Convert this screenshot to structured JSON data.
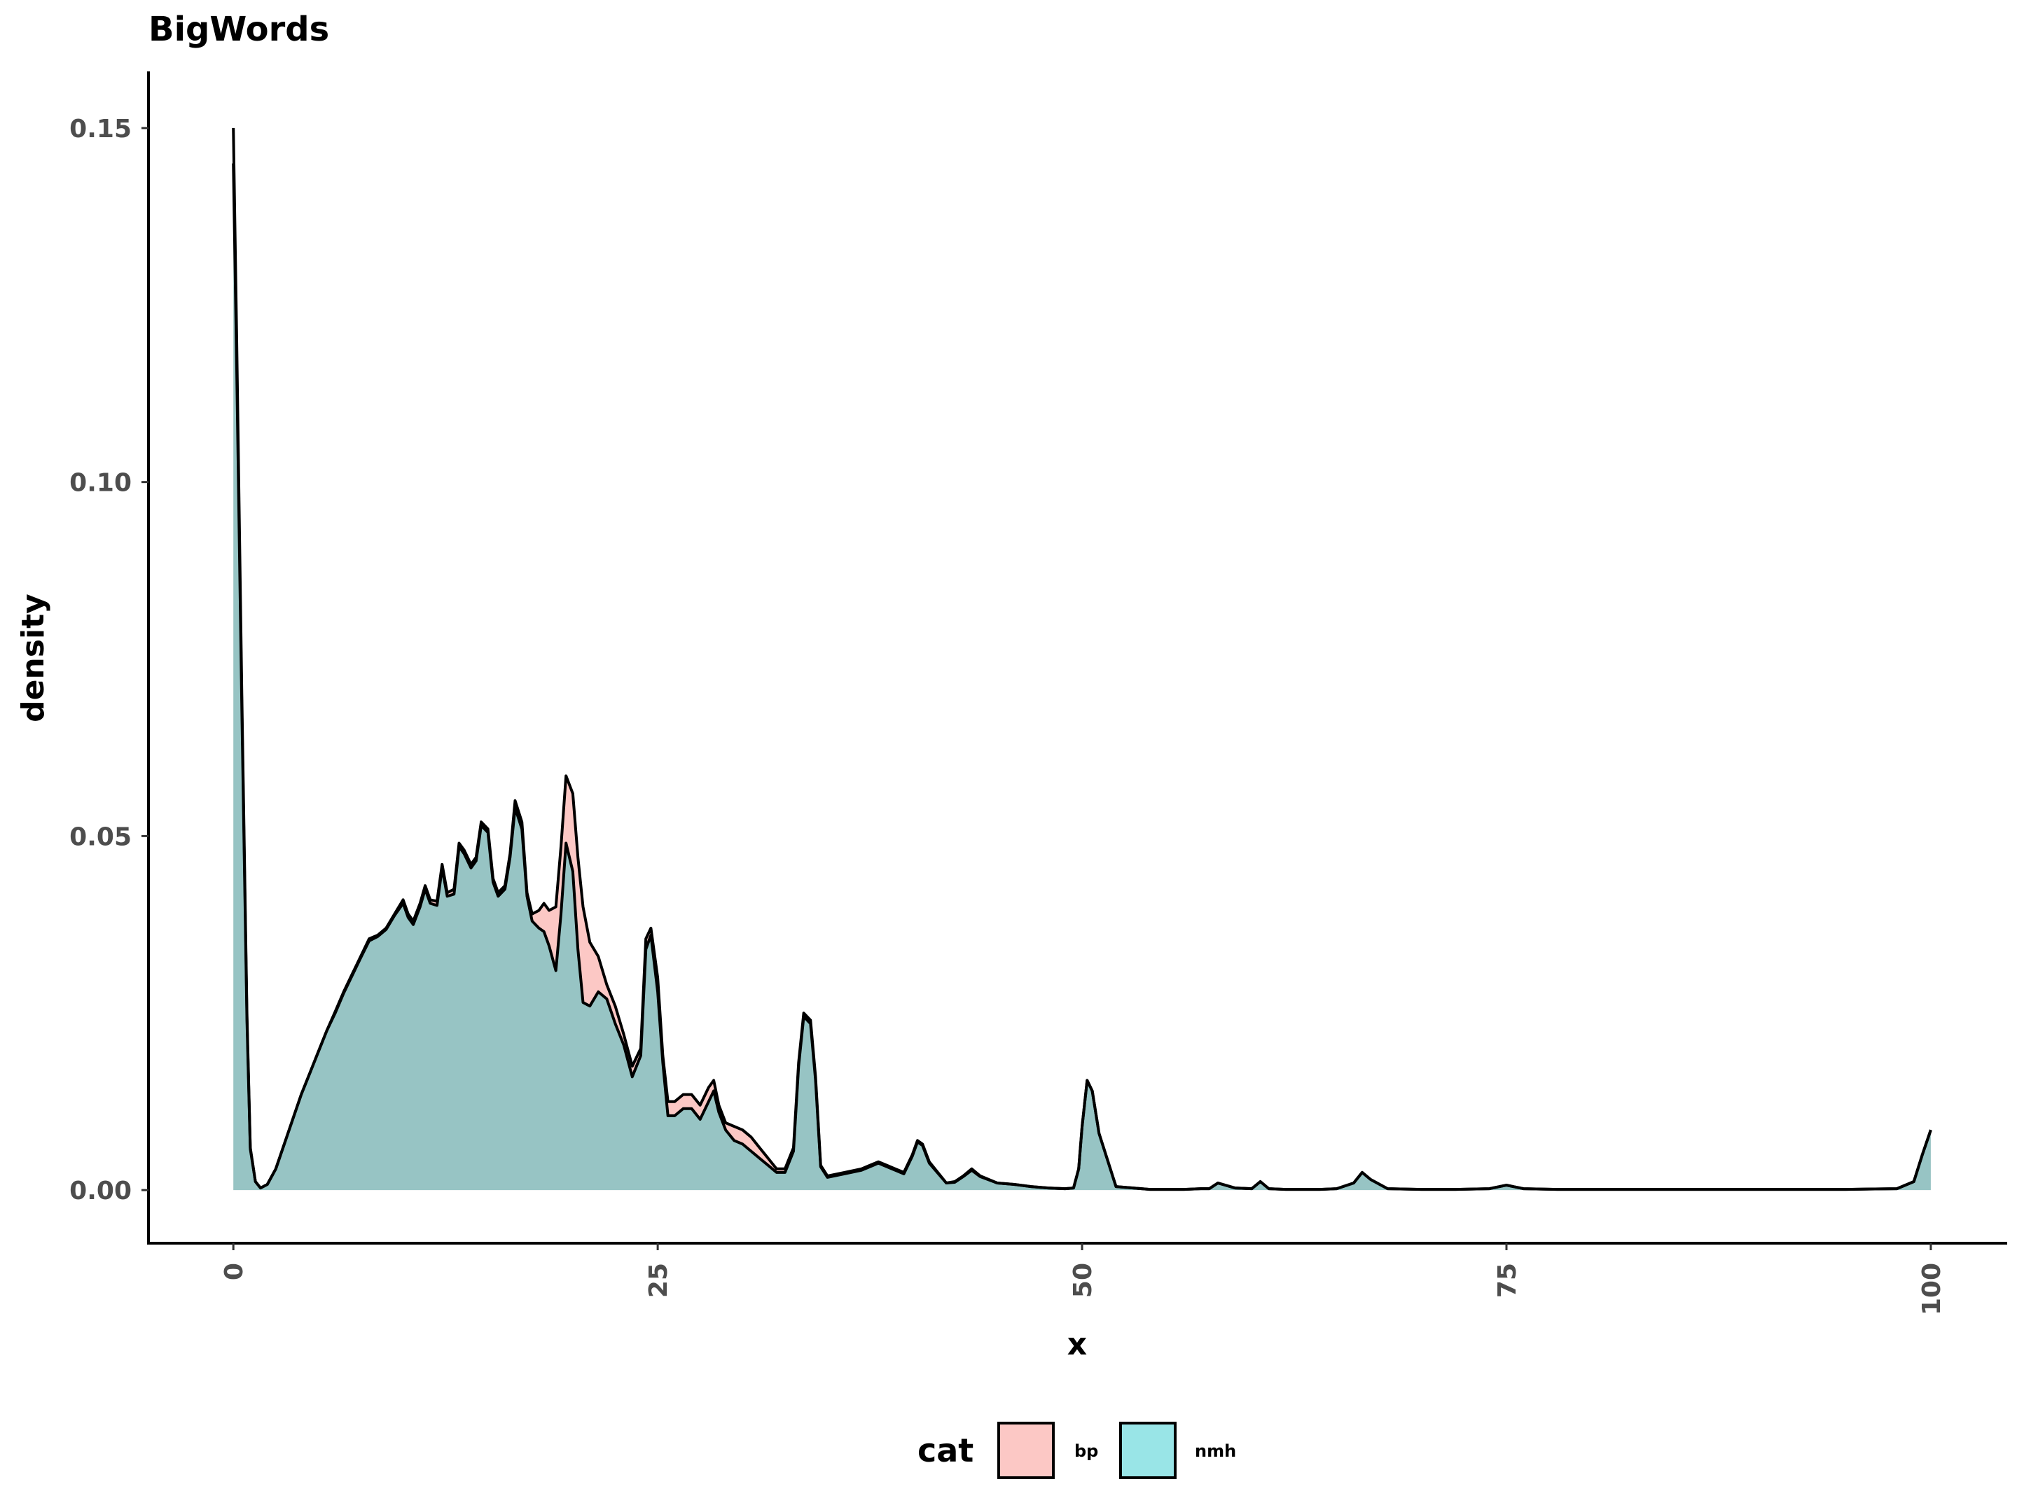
{
  "chart_data": {
    "type": "area",
    "title": "BigWords",
    "xlabel": "x",
    "ylabel": "density",
    "xlim": [
      -5,
      104.5
    ],
    "ylim": [
      -0.0075,
      0.158
    ],
    "x_ticks": [
      0,
      25,
      50,
      75,
      100
    ],
    "x_tick_labels": [
      "0",
      "25",
      "50",
      "75",
      "100"
    ],
    "y_ticks": [
      0.0,
      0.05,
      0.1,
      0.15
    ],
    "y_tick_labels": [
      "0.00",
      "0.05",
      "0.10",
      "0.15"
    ],
    "grid": false,
    "legend": {
      "title": "cat",
      "position": "bottom",
      "entries": [
        "bp",
        "nmh"
      ]
    },
    "series": [
      {
        "name": "bp",
        "color": "#F8766D",
        "x": [
          0,
          0.2,
          0.5,
          0.8,
          1.0,
          1.3,
          1.6,
          2.0,
          2.5,
          3,
          3.5,
          4,
          4.5,
          5,
          5.5,
          6,
          6.5,
          7,
          7.5,
          8,
          8.5,
          9,
          9.5,
          10,
          10.3,
          10.6,
          11,
          11.3,
          11.6,
          12,
          12.3,
          12.6,
          13,
          13.3,
          13.6,
          14,
          14.3,
          14.6,
          15,
          15.3,
          15.6,
          16,
          16.3,
          16.6,
          17,
          17.3,
          17.6,
          18,
          18.3,
          18.6,
          19,
          19.3,
          19.6,
          20,
          20.3,
          20.6,
          21,
          21.5,
          22,
          22.5,
          23,
          23.5,
          24,
          24.3,
          24.6,
          25,
          25.3,
          25.6,
          26,
          26.5,
          27,
          27.5,
          28,
          28.3,
          28.6,
          29,
          29.5,
          30,
          30.5,
          31,
          31.5,
          32,
          32.5,
          33,
          33.3,
          33.6,
          34,
          34.3,
          34.6,
          35,
          36,
          37,
          37.5,
          38,
          39,
          39.5,
          40,
          40.3,
          40.6,
          41,
          42,
          42.5,
          43,
          43.5,
          44,
          45,
          46,
          47,
          48,
          49,
          49.5,
          49.8,
          50,
          50.3,
          50.6,
          51,
          52,
          54,
          56,
          57,
          57.5,
          58,
          59,
          60,
          60.5,
          61,
          62,
          64,
          65,
          66,
          66.5,
          67,
          68,
          70,
          72,
          74,
          75,
          76,
          78,
          80,
          85,
          90,
          95,
          98,
          99,
          99.5,
          100
        ],
        "y": [
          0.15,
          0.12,
          0.07,
          0.025,
          0.006,
          0.0012,
          0.0003,
          0.0008,
          0.003,
          0.0065,
          0.01,
          0.0135,
          0.0165,
          0.0195,
          0.0225,
          0.0252,
          0.028,
          0.0305,
          0.033,
          0.0355,
          0.036,
          0.037,
          0.039,
          0.041,
          0.039,
          0.038,
          0.0405,
          0.043,
          0.041,
          0.0408,
          0.046,
          0.042,
          0.0425,
          0.049,
          0.048,
          0.046,
          0.047,
          0.052,
          0.051,
          0.044,
          0.042,
          0.043,
          0.0475,
          0.055,
          0.052,
          0.042,
          0.039,
          0.0395,
          0.0405,
          0.0395,
          0.04,
          0.0485,
          0.0585,
          0.056,
          0.047,
          0.04,
          0.035,
          0.033,
          0.029,
          0.026,
          0.022,
          0.0175,
          0.02,
          0.0355,
          0.037,
          0.03,
          0.019,
          0.0125,
          0.0125,
          0.0135,
          0.0135,
          0.012,
          0.0145,
          0.0155,
          0.012,
          0.0095,
          0.009,
          0.0085,
          0.0075,
          0.006,
          0.0045,
          0.003,
          0.003,
          0.006,
          0.018,
          0.025,
          0.024,
          0.016,
          0.0035,
          0.002,
          0.0025,
          0.003,
          0.0035,
          0.004,
          0.003,
          0.0025,
          0.005,
          0.007,
          0.0065,
          0.004,
          0.001,
          0.0012,
          0.002,
          0.003,
          0.002,
          0.001,
          0.0008,
          0.0005,
          0.0003,
          0.0002,
          0.0003,
          0.003,
          0.009,
          0.0155,
          0.014,
          0.008,
          0.0005,
          0.0001,
          0.0001,
          0.0002,
          0.0002,
          0.001,
          0.0003,
          0.0002,
          0.0012,
          0.0002,
          0.0001,
          0.0001,
          0.0002,
          0.001,
          0.0025,
          0.0015,
          0.0002,
          0.0001,
          0.0001,
          0.0002,
          0.0007,
          0.0002,
          0.0001,
          0.0001,
          0.0001,
          0.0001,
          0.0001,
          0.0002,
          0.0012,
          0.005,
          0.0085
        ]
      },
      {
        "name": "nmh",
        "color": "#00BFC4",
        "x": [
          0,
          0.2,
          0.5,
          0.8,
          1.0,
          1.3,
          1.6,
          2.0,
          2.5,
          3,
          3.5,
          4,
          4.5,
          5,
          5.5,
          6,
          6.5,
          7,
          7.5,
          8,
          8.5,
          9,
          9.5,
          10,
          10.3,
          10.6,
          11,
          11.3,
          11.6,
          12,
          12.3,
          12.6,
          13,
          13.3,
          13.6,
          14,
          14.3,
          14.6,
          15,
          15.3,
          15.6,
          16,
          16.3,
          16.6,
          17,
          17.3,
          17.6,
          18,
          18.3,
          18.6,
          19,
          19.3,
          19.6,
          20,
          20.3,
          20.6,
          21,
          21.5,
          22,
          22.5,
          23,
          23.5,
          24,
          24.3,
          24.6,
          25,
          25.3,
          25.6,
          26,
          26.5,
          27,
          27.5,
          28,
          28.3,
          28.6,
          29,
          29.5,
          30,
          30.5,
          31,
          31.5,
          32,
          32.5,
          33,
          33.3,
          33.6,
          34,
          34.3,
          34.6,
          35,
          36,
          37,
          37.5,
          38,
          39,
          39.5,
          40,
          40.3,
          40.6,
          41,
          42,
          42.5,
          43,
          43.5,
          44,
          45,
          46,
          47,
          48,
          49,
          49.5,
          49.8,
          50,
          50.3,
          50.6,
          51,
          52,
          54,
          56,
          57,
          57.5,
          58,
          59,
          60,
          60.5,
          61,
          62,
          64,
          65,
          66,
          66.5,
          67,
          68,
          70,
          72,
          74,
          75,
          76,
          78,
          80,
          85,
          90,
          95,
          98,
          99,
          99.5,
          100
        ],
        "y": [
          0.145,
          0.116,
          0.068,
          0.024,
          0.0058,
          0.0012,
          0.0003,
          0.0008,
          0.003,
          0.0065,
          0.01,
          0.0135,
          0.0165,
          0.0195,
          0.0225,
          0.025,
          0.0278,
          0.0303,
          0.0328,
          0.0352,
          0.0358,
          0.0368,
          0.0388,
          0.0405,
          0.0385,
          0.0375,
          0.04,
          0.0425,
          0.0405,
          0.0402,
          0.0455,
          0.0415,
          0.0418,
          0.0485,
          0.0475,
          0.0455,
          0.0465,
          0.0515,
          0.0505,
          0.0435,
          0.0415,
          0.0425,
          0.047,
          0.054,
          0.051,
          0.0415,
          0.038,
          0.037,
          0.0365,
          0.0345,
          0.031,
          0.039,
          0.049,
          0.045,
          0.034,
          0.0265,
          0.026,
          0.028,
          0.027,
          0.0235,
          0.0205,
          0.016,
          0.019,
          0.034,
          0.036,
          0.028,
          0.018,
          0.0105,
          0.0105,
          0.0115,
          0.0115,
          0.01,
          0.0125,
          0.014,
          0.011,
          0.0085,
          0.007,
          0.0065,
          0.0055,
          0.0045,
          0.0035,
          0.0025,
          0.0025,
          0.0055,
          0.0175,
          0.0245,
          0.0235,
          0.0155,
          0.0033,
          0.0018,
          0.0023,
          0.0028,
          0.0033,
          0.0038,
          0.0028,
          0.0023,
          0.0048,
          0.0068,
          0.0063,
          0.0038,
          0.001,
          0.0011,
          0.0019,
          0.0028,
          0.0019,
          0.001,
          0.0008,
          0.0005,
          0.0003,
          0.0002,
          0.0003,
          0.003,
          0.009,
          0.0155,
          0.014,
          0.008,
          0.0005,
          0.0001,
          0.0001,
          0.0002,
          0.0002,
          0.001,
          0.0003,
          0.0002,
          0.0012,
          0.0002,
          0.0001,
          0.0001,
          0.0002,
          0.001,
          0.0025,
          0.0015,
          0.0002,
          0.0001,
          0.0001,
          0.0002,
          0.0007,
          0.0002,
          0.0001,
          0.0001,
          0.0001,
          0.0001,
          0.0001,
          0.0002,
          0.0012,
          0.005,
          0.0085
        ]
      }
    ]
  }
}
